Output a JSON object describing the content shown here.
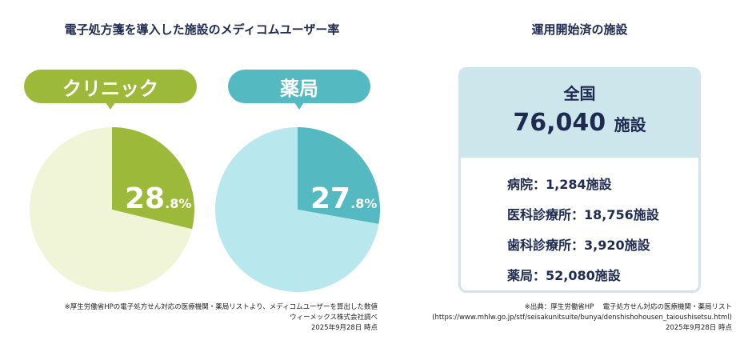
{
  "left_title": "電子処方箋を導入した施設のメディコムユーザー率",
  "right_title": "運用開始済の施設",
  "chart_data": [
    {
      "type": "pie",
      "label": "クリニック",
      "values": [
        28.8,
        71.2
      ],
      "display_int": "28",
      "display_dec": ".8%",
      "colors": [
        "#9db93a",
        "#f0f5d8"
      ]
    },
    {
      "type": "pie",
      "label": "薬局",
      "values": [
        27.8,
        72.2
      ],
      "display_int": "27",
      "display_dec": ".8%",
      "colors": [
        "#55b9c1",
        "#b8e8ee"
      ]
    }
  ],
  "left_notes": [
    "※厚生労働省HPの電子処方せん対応の医療機関・薬局リストより、メディコムユーザーを算出した数値",
    "ウィーメックス株式会社調べ",
    "2025年9月28日 時点"
  ],
  "card": {
    "region": "全国",
    "total": "76,040",
    "total_unit": "施設",
    "items": [
      "病院：1,284施設",
      "医科診療所：18,756施設",
      "歯科診療所：3,920施設",
      "薬局：52,080施設"
    ]
  },
  "right_notes": [
    "※出典：厚生労働省HP　 電子処方せん対応の医療機関・薬局リスト",
    "(https://www.mhlw.go.jp/stf/seisakunitsuite/bunya/denshishohousen_taioushisetsu.html)",
    "2025年9月28日 時点"
  ]
}
